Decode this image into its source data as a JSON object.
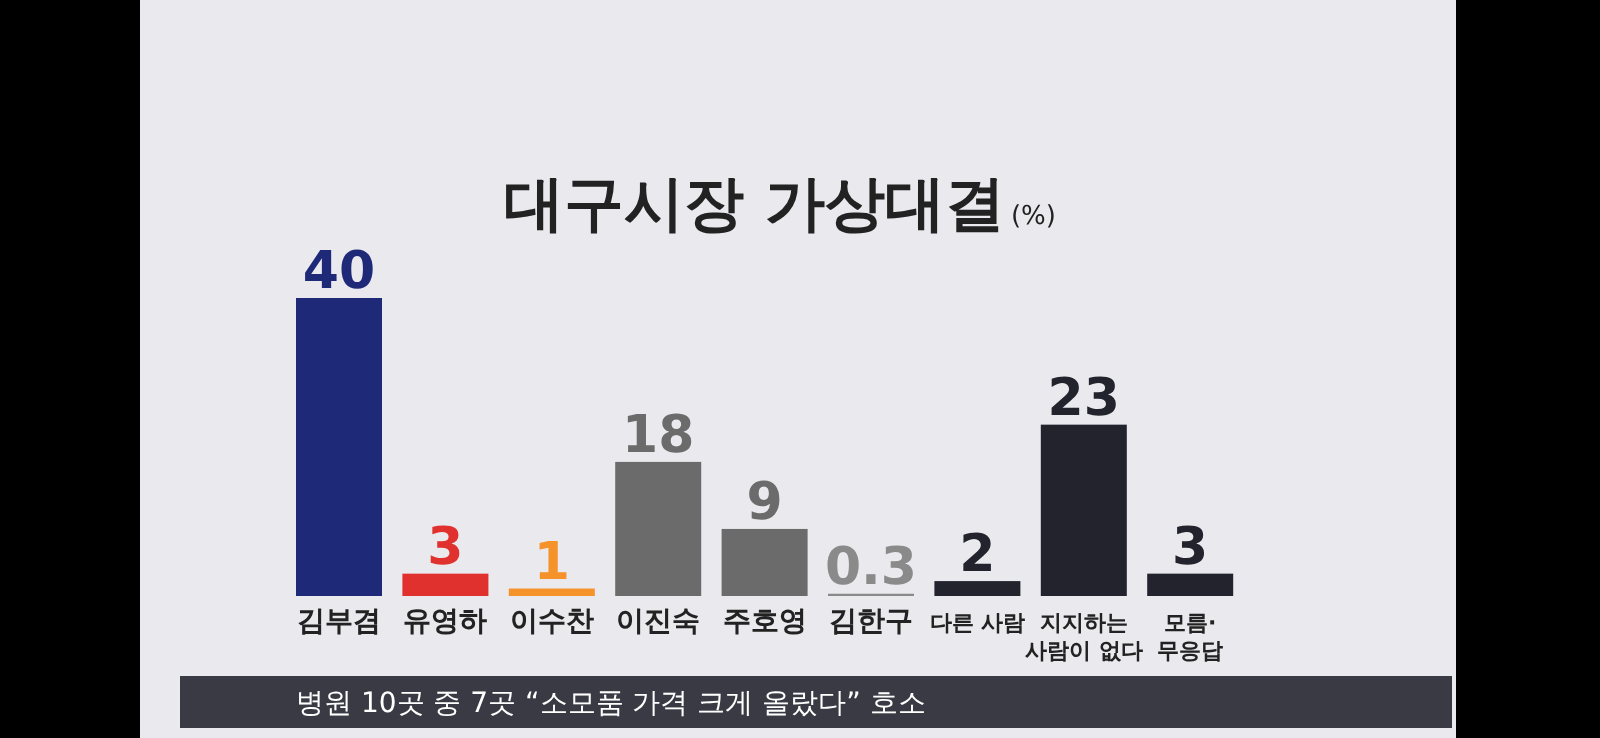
{
  "chart_data": {
    "type": "bar",
    "title": "대구시장 가상대결",
    "subtitle": "(%)",
    "categories": [
      "김부겸",
      "유영하",
      "이수찬",
      "이진숙",
      "주호영",
      "김한구",
      "다른 사람",
      "지지하는\n사람이 없다",
      "모름·\n무응답"
    ],
    "values": [
      40,
      3,
      1,
      18,
      9,
      0.3,
      2,
      23,
      3
    ],
    "colors": [
      "#1e2a78",
      "#e0312f",
      "#f5922a",
      "#6b6b6b",
      "#6b6b6b",
      "#8a8a8a",
      "#23232e",
      "#23232e",
      "#23232e"
    ],
    "ylim": [
      0,
      40
    ],
    "tick_labels": "x",
    "data_labels": true,
    "annotations": [
      "병원 10곳 중 7곳 “소모품 가격 크게 올랐다” 호소"
    ]
  }
}
